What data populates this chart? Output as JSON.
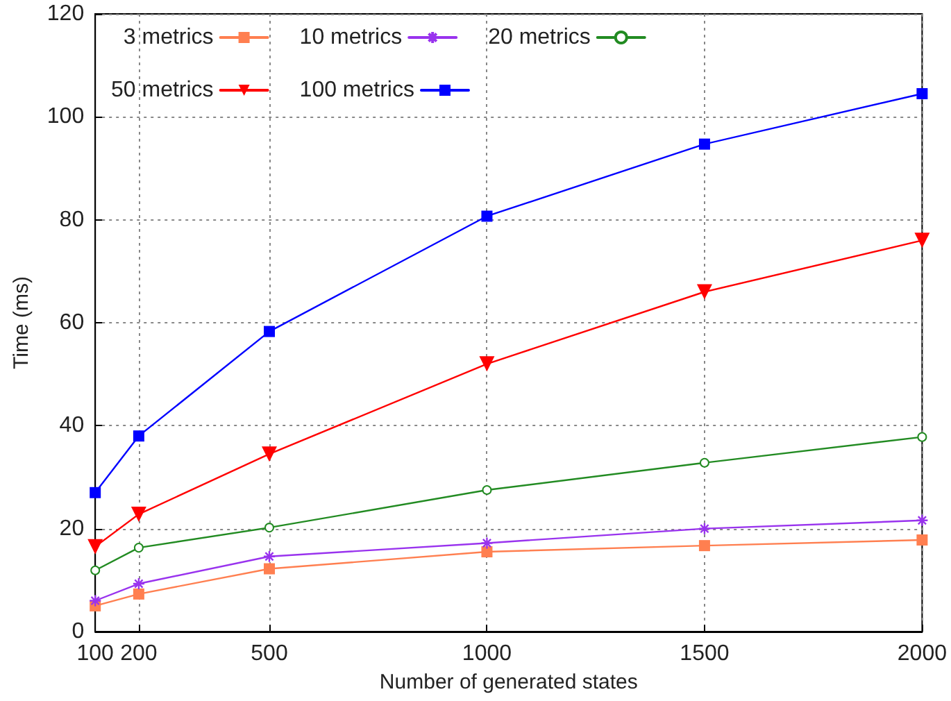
{
  "chart_data": {
    "type": "line",
    "xlabel": "Number of generated states",
    "ylabel": "Time (ms)",
    "x": [
      100,
      200,
      500,
      1000,
      1500,
      2000
    ],
    "series": [
      {
        "name": "3 metrics",
        "color": "#ff7f50",
        "marker": "square",
        "values": [
          5,
          7.3,
          12.2,
          15.5,
          16.7,
          17.8
        ]
      },
      {
        "name": "10 metrics",
        "color": "#9933ee",
        "marker": "cross",
        "values": [
          6,
          9.3,
          14.6,
          17.2,
          20,
          21.6
        ]
      },
      {
        "name": "20 metrics",
        "color": "#228b22",
        "marker": "circle",
        "values": [
          11.9,
          16.3,
          20.2,
          27.5,
          32.8,
          37.8
        ]
      },
      {
        "name": "50 metrics",
        "color": "#ff0000",
        "marker": "triangle",
        "values": [
          16.5,
          22.8,
          34.5,
          52,
          66,
          76
        ]
      },
      {
        "name": "100 metrics",
        "color": "#0000ff",
        "marker": "square",
        "values": [
          27,
          38,
          58.3,
          80.7,
          94.7,
          104.5
        ]
      }
    ],
    "xlim": [
      100,
      2000
    ],
    "xticks": [
      100,
      200,
      500,
      1000,
      1500,
      2000
    ],
    "ylim": [
      0,
      120
    ],
    "yticks": [
      0,
      20,
      40,
      60,
      80,
      100,
      120
    ],
    "grid": true,
    "legend": "top",
    "line_style": "solid"
  }
}
